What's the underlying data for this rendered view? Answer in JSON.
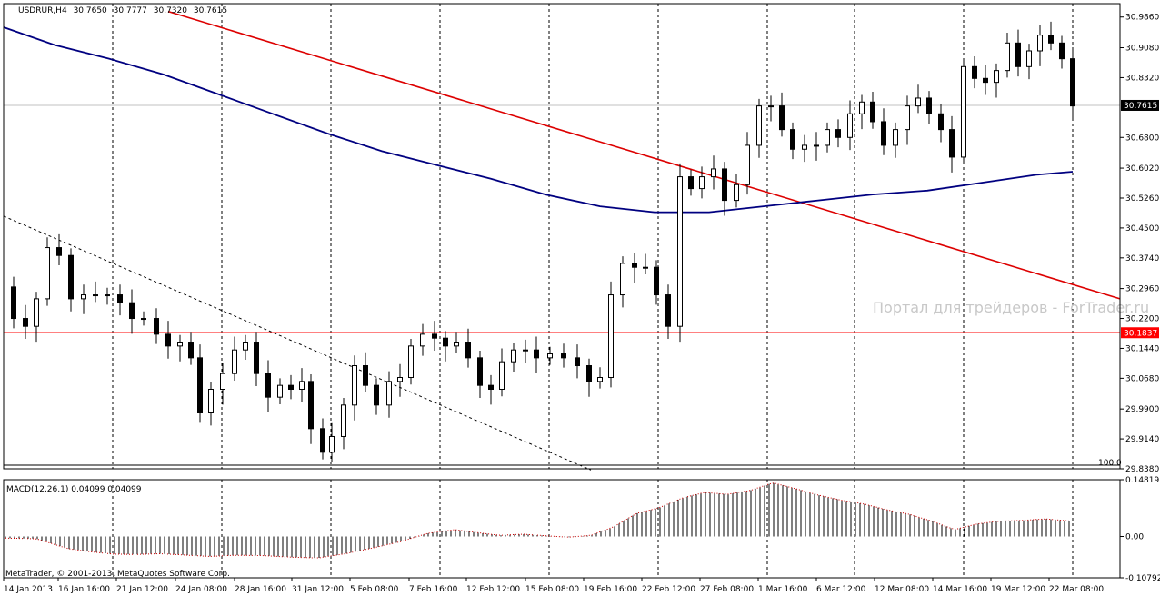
{
  "chart_data": {
    "type": "candlestick",
    "symbol": "USDRUR,H4",
    "header": {
      "symbol": "USDRUR,H4",
      "open": "30.7650",
      "high": "30.7777",
      "low": "30.7320",
      "close": "30.7615"
    },
    "ylim": [
      29.838,
      31.02
    ],
    "price_ticks": [
      "30.9860",
      "30.9080",
      "30.8320",
      "30.6800",
      "30.6020",
      "30.5260",
      "30.4500",
      "30.3740",
      "30.2960",
      "30.2200",
      "30.1440",
      "30.0680",
      "29.9900",
      "29.9140",
      "29.8380"
    ],
    "current_price": {
      "value": 30.7615,
      "label": "30.7615",
      "color": "#000000"
    },
    "support_line": {
      "value": 30.1837,
      "label": "30.1837",
      "color": "#ff0000"
    },
    "ma_color": "#000080",
    "trend_color": "#dd0000",
    "x_ticks": [
      "14 Jan 2013",
      "16 Jan 16:00",
      "21 Jan 12:00",
      "24 Jan 08:00",
      "28 Jan 16:00",
      "31 Jan 12:00",
      "5 Feb 08:00",
      "7 Feb 16:00",
      "12 Feb 12:00",
      "15 Feb 08:00",
      "19 Feb 16:00",
      "22 Feb 12:00",
      "27 Feb 08:00",
      "1 Mar 16:00",
      "6 Mar 12:00",
      "12 Mar 08:00",
      "14 Mar 16:00",
      "19 Mar 12:00",
      "22 Mar 08:00"
    ],
    "level_label": "100.0",
    "macd": {
      "label": "MACD(12,26,1) 0.04099 0.04099",
      "ticks": [
        "0.14819",
        "0.00",
        "-0.10792"
      ],
      "ylim": [
        -0.10792,
        0.14819
      ],
      "anchors": [
        [
          0,
          -0.004
        ],
        [
          40,
          -0.006
        ],
        [
          75,
          -0.032
        ],
        [
          100,
          -0.04
        ],
        [
          125,
          -0.046
        ],
        [
          150,
          -0.047
        ],
        [
          175,
          -0.045
        ],
        [
          200,
          -0.048
        ],
        [
          230,
          -0.052
        ],
        [
          260,
          -0.049
        ],
        [
          290,
          -0.05
        ],
        [
          320,
          -0.054
        ],
        [
          350,
          -0.056
        ],
        [
          380,
          -0.045
        ],
        [
          410,
          -0.03
        ],
        [
          440,
          -0.014
        ],
        [
          470,
          0.008
        ],
        [
          500,
          0.018
        ],
        [
          525,
          0.01
        ],
        [
          550,
          0.003
        ],
        [
          575,
          0.006
        ],
        [
          600,
          0.002
        ],
        [
          625,
          -0.002
        ],
        [
          650,
          0.003
        ],
        [
          675,
          0.025
        ],
        [
          700,
          0.06
        ],
        [
          725,
          0.075
        ],
        [
          750,
          0.1
        ],
        [
          775,
          0.115
        ],
        [
          800,
          0.11
        ],
        [
          825,
          0.12
        ],
        [
          850,
          0.14
        ],
        [
          875,
          0.125
        ],
        [
          900,
          0.108
        ],
        [
          925,
          0.095
        ],
        [
          950,
          0.085
        ],
        [
          975,
          0.07
        ],
        [
          1000,
          0.058
        ],
        [
          1025,
          0.04
        ],
        [
          1050,
          0.018
        ],
        [
          1075,
          0.033
        ],
        [
          1100,
          0.04
        ],
        [
          1125,
          0.042
        ],
        [
          1150,
          0.046
        ],
        [
          1178,
          0.04
        ]
      ]
    },
    "candle_anchors": [
      [
        2,
        30.3
      ],
      [
        15,
        30.22
      ],
      [
        28,
        30.2
      ],
      [
        40,
        30.27
      ],
      [
        52,
        30.4
      ],
      [
        65,
        30.38
      ],
      [
        78,
        30.27
      ],
      [
        92,
        30.28
      ],
      [
        105,
        30.28
      ],
      [
        118,
        30.28
      ],
      [
        132,
        30.26
      ],
      [
        145,
        30.22
      ],
      [
        158,
        30.22
      ],
      [
        172,
        30.18
      ],
      [
        185,
        30.15
      ],
      [
        198,
        30.16
      ],
      [
        210,
        30.12
      ],
      [
        220,
        29.98
      ],
      [
        232,
        30.04
      ],
      [
        245,
        30.08
      ],
      [
        258,
        30.14
      ],
      [
        270,
        30.16
      ],
      [
        282,
        30.08
      ],
      [
        295,
        30.02
      ],
      [
        308,
        30.05
      ],
      [
        320,
        30.04
      ],
      [
        332,
        30.06
      ],
      [
        342,
        29.94
      ],
      [
        355,
        29.88
      ],
      [
        365,
        29.92
      ],
      [
        378,
        30.0
      ],
      [
        390,
        30.1
      ],
      [
        402,
        30.05
      ],
      [
        414,
        30.0
      ],
      [
        428,
        30.06
      ],
      [
        440,
        30.07
      ],
      [
        452,
        30.15
      ],
      [
        465,
        30.18
      ],
      [
        478,
        30.17
      ],
      [
        490,
        30.15
      ],
      [
        502,
        30.16
      ],
      [
        515,
        30.12
      ],
      [
        528,
        30.05
      ],
      [
        540,
        30.04
      ],
      [
        552,
        30.11
      ],
      [
        565,
        30.14
      ],
      [
        578,
        30.14
      ],
      [
        590,
        30.12
      ],
      [
        605,
        30.13
      ],
      [
        620,
        30.12
      ],
      [
        635,
        30.1
      ],
      [
        648,
        30.06
      ],
      [
        660,
        30.07
      ],
      [
        672,
        30.28
      ],
      [
        685,
        30.36
      ],
      [
        698,
        30.35
      ],
      [
        710,
        30.35
      ],
      [
        722,
        30.28
      ],
      [
        735,
        30.2
      ],
      [
        748,
        30.58
      ],
      [
        760,
        30.55
      ],
      [
        772,
        30.58
      ],
      [
        785,
        30.6
      ],
      [
        797,
        30.52
      ],
      [
        810,
        30.56
      ],
      [
        822,
        30.66
      ],
      [
        835,
        30.76
      ],
      [
        848,
        30.76
      ],
      [
        860,
        30.7
      ],
      [
        872,
        30.65
      ],
      [
        885,
        30.66
      ],
      [
        898,
        30.66
      ],
      [
        910,
        30.7
      ],
      [
        922,
        30.68
      ],
      [
        935,
        30.74
      ],
      [
        948,
        30.77
      ],
      [
        960,
        30.72
      ],
      [
        972,
        30.66
      ],
      [
        985,
        30.7
      ],
      [
        998,
        30.76
      ],
      [
        1010,
        30.78
      ],
      [
        1022,
        30.74
      ],
      [
        1035,
        30.7
      ],
      [
        1047,
        30.63
      ],
      [
        1060,
        30.86
      ],
      [
        1072,
        30.83
      ],
      [
        1084,
        30.82
      ],
      [
        1096,
        30.85
      ],
      [
        1108,
        30.92
      ],
      [
        1120,
        30.86
      ],
      [
        1132,
        30.9
      ],
      [
        1144,
        30.94
      ],
      [
        1156,
        30.92
      ],
      [
        1168,
        30.88
      ],
      [
        1180,
        30.76
      ]
    ]
  },
  "watermark": "Портал для трейдеров - ForTrader.ru",
  "footer_credit": "MetaTrader, © 2001-2013, MetaQuotes Software Corp."
}
